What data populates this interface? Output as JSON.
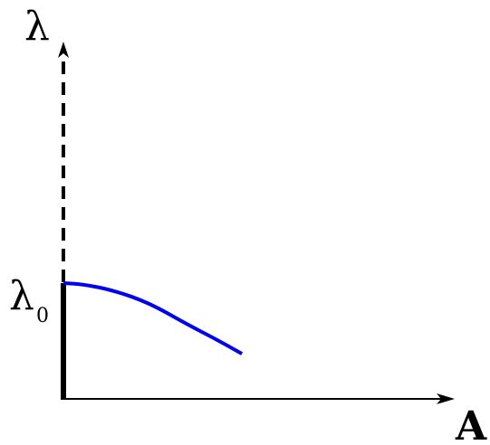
{
  "labels": {
    "y_axis": "λ",
    "x_axis": "A",
    "lambda0_symbol": "λ",
    "lambda0_subscript": "0"
  },
  "colors": {
    "axes": "#000000",
    "curve": "#0000ee",
    "background": "#ffffff"
  },
  "chart_data": {
    "type": "line",
    "note_style": "schematic bifurcation sketch",
    "y_axis_dashed_above_lambda0": true,
    "y_axis_thick_segment_below_lambda0": true,
    "series": [
      {
        "x": [
          0.0,
          0.08,
          0.2,
          0.35,
          0.5,
          0.62,
          0.73
        ],
        "y": [
          1.0,
          0.99,
          0.94,
          0.83,
          0.65,
          0.52,
          0.39
        ]
      }
    ]
  }
}
